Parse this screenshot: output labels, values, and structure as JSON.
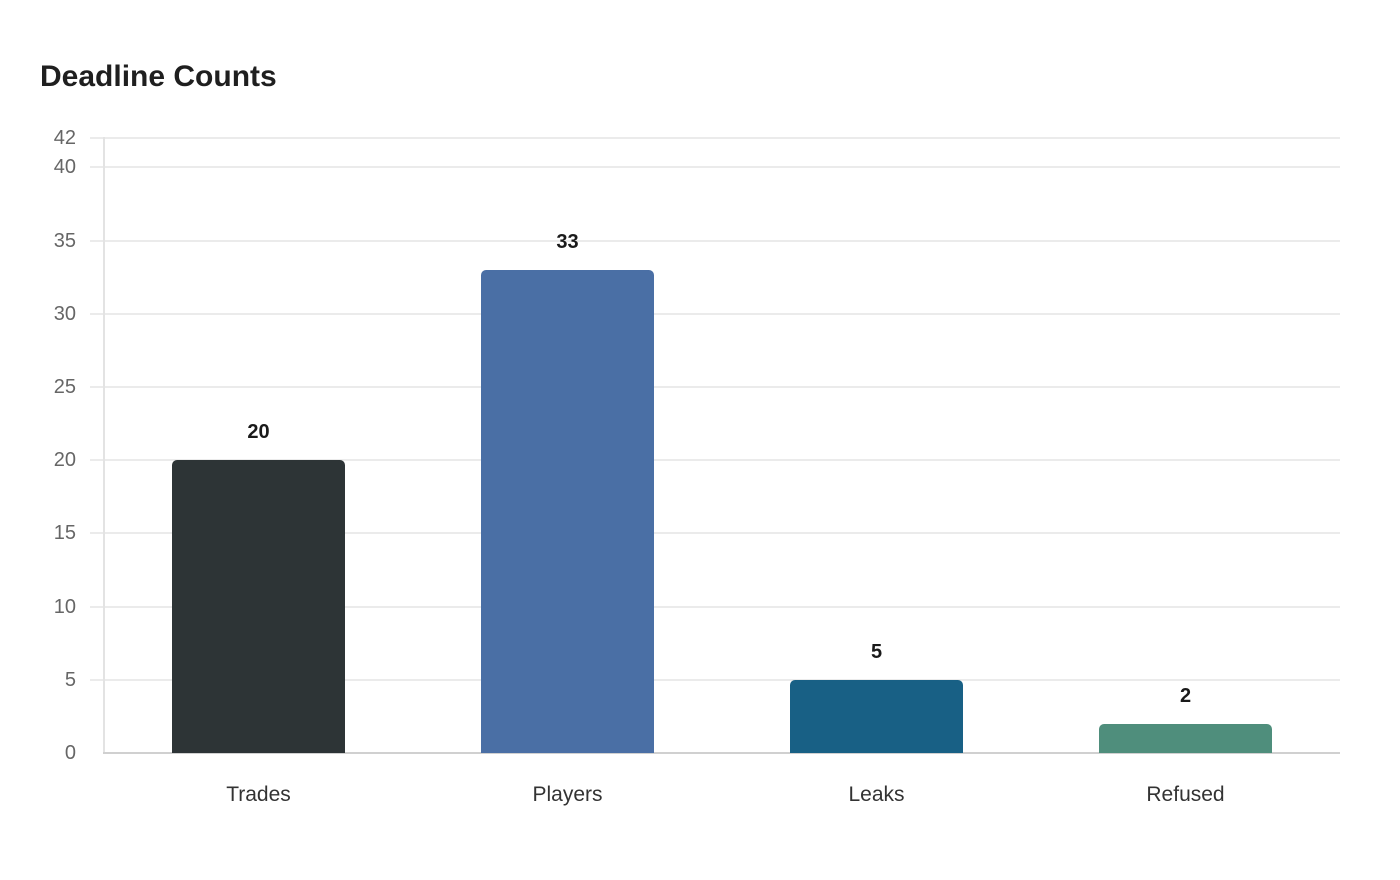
{
  "chart_data": {
    "type": "bar",
    "title": "Deadline Counts",
    "categories": [
      "Trades",
      "Players",
      "Leaks",
      "Refused"
    ],
    "values": [
      20,
      33,
      5,
      2
    ],
    "colors": [
      "#2d3436",
      "#4a6fa5",
      "#186085",
      "#4f8e7c"
    ],
    "xlabel": "",
    "ylabel": "",
    "ylim": [
      0,
      42
    ],
    "yticks": [
      0,
      5,
      10,
      15,
      20,
      25,
      30,
      35,
      40,
      42
    ],
    "grid": true,
    "legend": null,
    "data_labels": true
  },
  "header": {
    "title": "Deadline Counts"
  }
}
